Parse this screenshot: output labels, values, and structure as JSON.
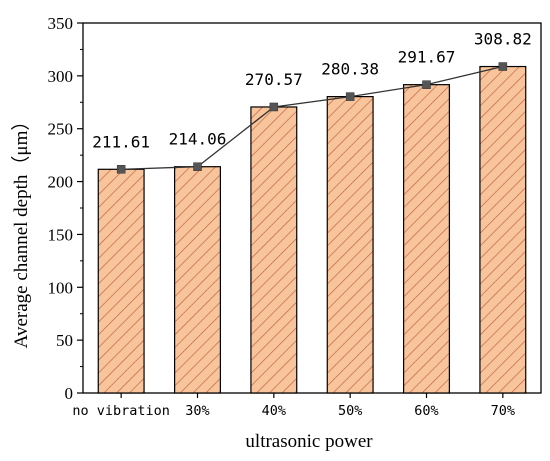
{
  "chart_data": {
    "type": "bar",
    "categories": [
      "no vibration",
      "30%",
      "40%",
      "50%",
      "60%",
      "70%"
    ],
    "values": [
      211.61,
      214.06,
      270.57,
      280.38,
      291.67,
      308.82
    ],
    "data_labels": [
      "211.61",
      "214.06",
      "270.57",
      "280.38",
      "291.67",
      "308.82"
    ],
    "overlay_line": true,
    "xlabel": "ultrasonic power",
    "ylabel": "Average channel depth（μm）",
    "ylim": [
      0,
      350
    ],
    "yticks": [
      0,
      50,
      100,
      150,
      200,
      250,
      300,
      350
    ],
    "grid": false,
    "bar_fill": "#f7c49c",
    "bar_hatch_color": "#c0603a",
    "bar_stroke": "#000000",
    "line_color": "#333333",
    "marker_color": "#555555"
  }
}
